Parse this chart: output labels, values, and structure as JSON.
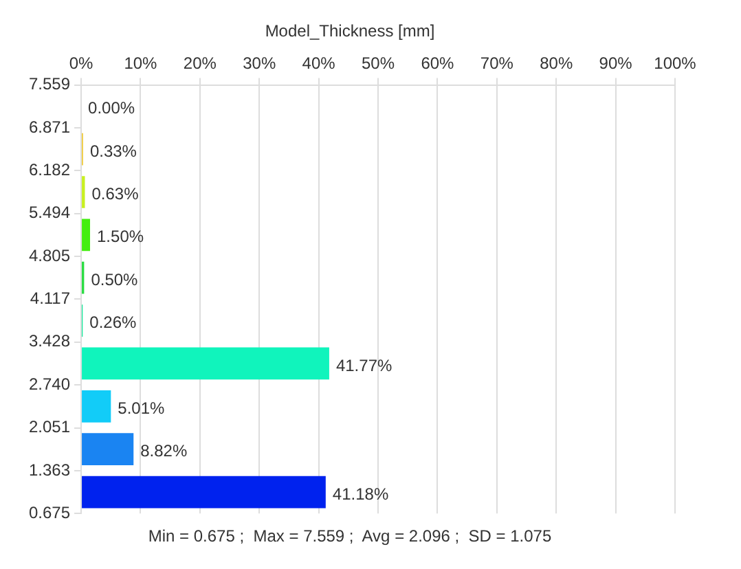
{
  "chart_data": {
    "type": "histogram",
    "orientation": "horizontal",
    "title": "Model_Thickness [mm]",
    "bins": [
      0.675,
      1.363,
      2.051,
      2.74,
      3.428,
      4.117,
      4.805,
      5.494,
      6.182,
      6.871,
      7.559
    ],
    "values": [
      41.18,
      8.82,
      5.01,
      41.77,
      0.26,
      0.5,
      1.5,
      0.63,
      0.33,
      0.0
    ],
    "value_labels": [
      "41.18%",
      "8.82%",
      "5.01%",
      "41.77%",
      "0.26%",
      "0.50%",
      "1.50%",
      "0.63%",
      "0.33%",
      "0.00%"
    ],
    "colors": [
      "#0022ee",
      "#1a84f2",
      "#12ccf8",
      "#10f4bc",
      "#10e898",
      "#28dc40",
      "#44ee10",
      "#c8f020",
      "#f0cc40",
      "#f0c000"
    ],
    "xlim": [
      0,
      100
    ],
    "xticks": [
      {
        "value": 0,
        "label": "0%"
      },
      {
        "value": 10,
        "label": "10%"
      },
      {
        "value": 20,
        "label": "20%"
      },
      {
        "value": 30,
        "label": "30%"
      },
      {
        "value": 40,
        "label": "40%"
      },
      {
        "value": 50,
        "label": "50%"
      },
      {
        "value": 60,
        "label": "60%"
      },
      {
        "value": 70,
        "label": "70%"
      },
      {
        "value": 80,
        "label": "80%"
      },
      {
        "value": 90,
        "label": "90%"
      },
      {
        "value": 100,
        "label": "100%"
      }
    ],
    "ylim": [
      0.675,
      7.559
    ],
    "yticks": [
      {
        "value": 0.675,
        "label": "0.675"
      },
      {
        "value": 1.363,
        "label": "1.363"
      },
      {
        "value": 2.051,
        "label": "2.051"
      },
      {
        "value": 2.74,
        "label": "2.740"
      },
      {
        "value": 3.428,
        "label": "3.428"
      },
      {
        "value": 4.117,
        "label": "4.117"
      },
      {
        "value": 4.805,
        "label": "4.805"
      },
      {
        "value": 5.494,
        "label": "5.494"
      },
      {
        "value": 6.182,
        "label": "6.182"
      },
      {
        "value": 6.871,
        "label": "6.871"
      },
      {
        "value": 7.559,
        "label": "7.559"
      }
    ],
    "grid": "x",
    "annotations": [
      "Min = 0.675 ;  Max = 7.559 ;  Avg = 2.096 ;  SD = 1.075"
    ]
  }
}
